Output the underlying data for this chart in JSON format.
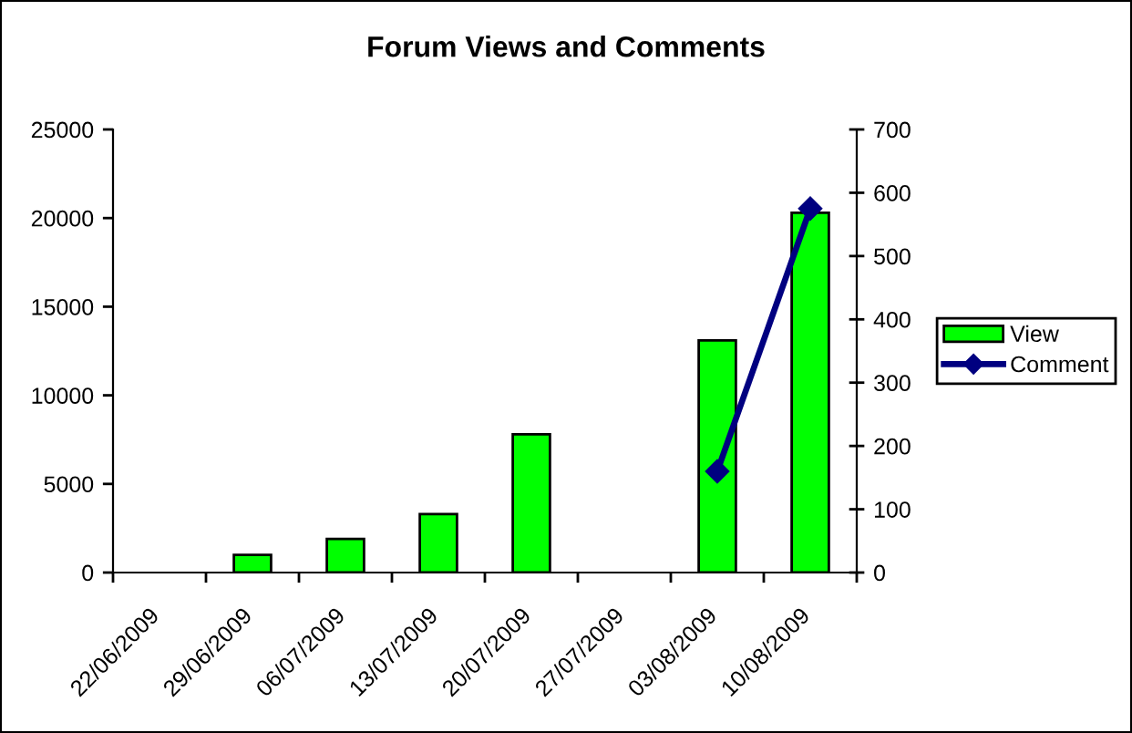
{
  "chart_data": {
    "type": "bar",
    "title": "Forum Views and Comments",
    "categories": [
      "22/06/2009",
      "29/06/2009",
      "06/07/2009",
      "13/07/2009",
      "20/07/2009",
      "27/07/2009",
      "03/08/2009",
      "10/08/2009"
    ],
    "series": [
      {
        "name": "View",
        "color": "#00ff00",
        "values": [
          null,
          1000,
          1900,
          3300,
          7800,
          null,
          13100,
          20300
        ]
      },
      {
        "name": "Comment",
        "type": "line",
        "axis": "y2",
        "color": "#000080",
        "values": [
          null,
          null,
          null,
          null,
          null,
          null,
          160,
          575
        ]
      }
    ],
    "ylim": [
      0,
      25000
    ],
    "yticks": [
      0,
      5000,
      10000,
      15000,
      20000,
      25000
    ],
    "y2lim": [
      0,
      700
    ],
    "y2ticks": [
      0,
      100,
      200,
      300,
      400,
      500,
      600,
      700
    ],
    "legend": "right",
    "marker": "diamond"
  }
}
